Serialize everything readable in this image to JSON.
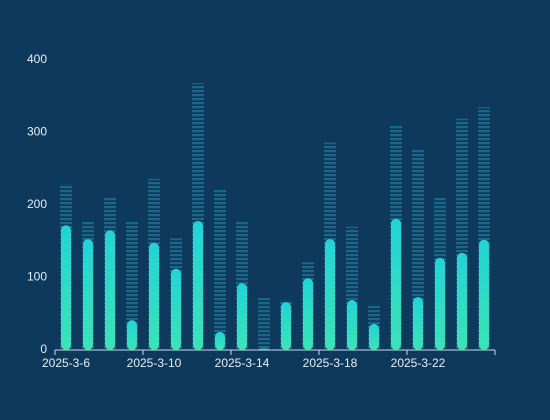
{
  "chart_data": {
    "type": "bar",
    "categories": [
      "2025-3-6",
      null,
      null,
      null,
      "2025-3-10",
      null,
      null,
      null,
      "2025-3-14",
      null,
      null,
      null,
      "2025-3-18",
      null,
      null,
      null,
      "2025-3-22",
      null,
      null,
      null
    ],
    "series": [
      {
        "color": "#1e6f8e",
        "values": [
          229,
          178,
          211,
          178,
          236,
          154,
          368,
          221,
          178,
          73,
          69,
          121,
          286,
          170,
          63,
          310,
          277,
          211,
          319,
          335
        ]
      },
      {
        "color": "#22d3d6",
        "values": [
          172,
          153,
          165,
          41,
          148,
          112,
          178,
          25,
          92,
          2,
          66,
          99,
          153,
          69,
          36,
          181,
          73,
          127,
          134,
          152
        ]
      }
    ],
    "ylim": [
      0,
      400
    ],
    "yticks": [
      0,
      100,
      200,
      300,
      400
    ]
  }
}
